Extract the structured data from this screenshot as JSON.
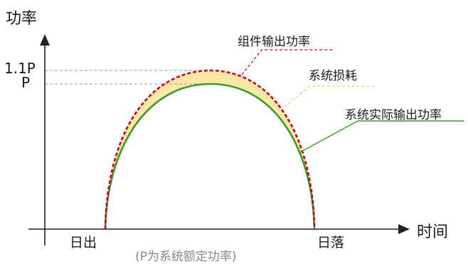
{
  "axes": {
    "y_title": "功率",
    "x_title": "时间",
    "y_ticks": [
      "1.1P",
      "P"
    ],
    "x_ticks": [
      "日出",
      "日落"
    ]
  },
  "annotations": {
    "module_output": "组件输出功率",
    "system_loss": "系统损耗",
    "actual_output": "系统实际输出功率",
    "note": "(P为系统额定功率)"
  },
  "colors": {
    "module_curve": "#d0021b",
    "actual_curve": "#3c9a2a",
    "loss_fill": "#fbe7a6",
    "axis": "#222222"
  }
}
